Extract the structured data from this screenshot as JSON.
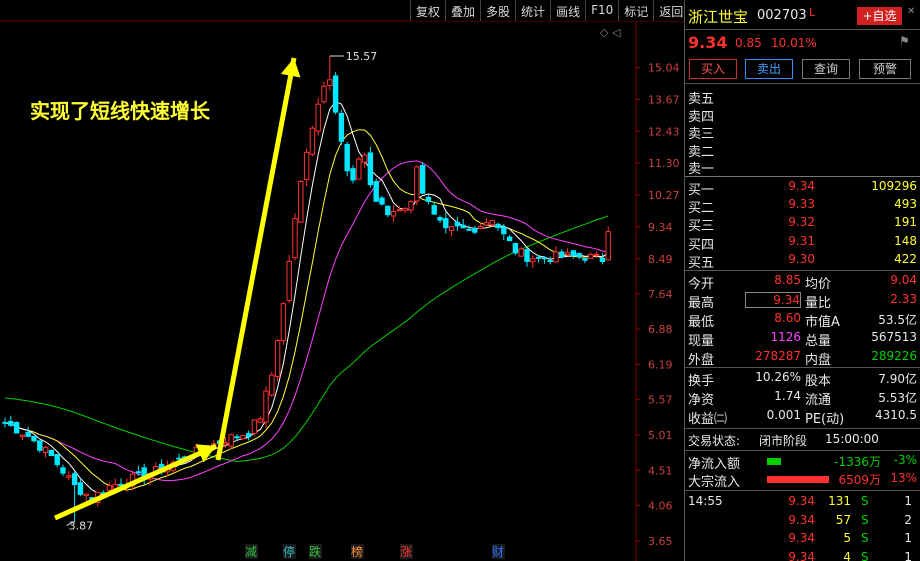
{
  "toolbar": [
    "复权",
    "叠加",
    "多股",
    "统计",
    "画线",
    "F10",
    "标记",
    "返回"
  ],
  "annotation": "实现了短线快速增长",
  "chart_icons": "◇ ◁",
  "chart_data": {
    "type": "candlestick",
    "price_ticks": [
      "15.04",
      "13.67",
      "12.43",
      "11.30",
      "10.27",
      "9.34",
      "8.49",
      "7.64",
      "6.88",
      "6.19",
      "5.57",
      "5.01",
      "4.51",
      "4.06",
      "3.65"
    ],
    "high_label": "15.57",
    "low_label": "3.87",
    "event_markers": [
      {
        "label": "减",
        "color": "#30c040"
      },
      {
        "label": "停",
        "color": "#30c0c0"
      },
      {
        "label": "跌",
        "color": "#30c040"
      },
      {
        "label": "榜",
        "color": "#ff9030"
      },
      {
        "label": "涨",
        "color": "#ff3030"
      },
      {
        "label": "财",
        "color": "#3070ff"
      }
    ],
    "colors": {
      "up": "#ff3030",
      "down": "#00e8ff",
      "ma5": "#ffffff",
      "ma10": "#ffff33",
      "ma20": "#ff40ff",
      "ma60": "#00d000",
      "arrow": "#ffff00"
    }
  },
  "stock": {
    "name": "浙江世宝",
    "code": "002703",
    "flag": "L",
    "add_fav": "+自选",
    "price": "9.34",
    "change": "0.85",
    "pct": "10.01%"
  },
  "actions": {
    "buy": "买入",
    "sell": "卖出",
    "query": "查询",
    "alert": "预警"
  },
  "asks": [
    "卖五",
    "卖四",
    "卖三",
    "卖二",
    "卖一"
  ],
  "bids": [
    {
      "label": "买一",
      "price": "9.34",
      "vol": "109296"
    },
    {
      "label": "买二",
      "price": "9.33",
      "vol": "493"
    },
    {
      "label": "买三",
      "price": "9.32",
      "vol": "191"
    },
    {
      "label": "买四",
      "price": "9.31",
      "vol": "148"
    },
    {
      "label": "买五",
      "price": "9.30",
      "vol": "422"
    }
  ],
  "quote": {
    "open_label": "今开",
    "open": "8.85",
    "avg_label": "均价",
    "avg": "9.04",
    "high_label": "最高",
    "high": "9.34",
    "vr_label": "量比",
    "vr": "2.33",
    "low_label": "最低",
    "low": "8.60",
    "mcap_label": "市值A",
    "mcap": "53.5亿",
    "cur_label": "现量",
    "cur": "1126",
    "total_label": "总量",
    "total": "567513",
    "out_label": "外盘",
    "out": "278287",
    "in_label": "内盘",
    "in": "289226"
  },
  "fund": {
    "turnover_label": "换手",
    "turnover": "10.26%",
    "capital_label": "股本",
    "capital": "7.90亿",
    "nav_label": "净资",
    "nav": "1.74",
    "float_label": "流通",
    "float": "5.53亿",
    "eps_label": "收益㈡",
    "eps": "0.001",
    "pe_label": "PE(动)",
    "pe": "4310.5"
  },
  "status": {
    "label": "交易状态:",
    "state": "闭市阶段",
    "time": "15:00:00"
  },
  "flows": [
    {
      "label": "净流入额",
      "value": "-1336万",
      "pct": "-3%",
      "color": "#00d000",
      "bar": 0.03
    },
    {
      "label": "大宗流入",
      "value": "6509万",
      "pct": "13%",
      "color": "#ff3030",
      "bar": 0.13
    }
  ],
  "ticks": [
    {
      "time": "14:55",
      "price": "9.34",
      "vol": "131",
      "side": "S",
      "n": "1"
    },
    {
      "time": "",
      "price": "9.34",
      "vol": "57",
      "side": "S",
      "n": "2"
    },
    {
      "time": "",
      "price": "9.34",
      "vol": "5",
      "side": "S",
      "n": "1"
    },
    {
      "time": "",
      "price": "9.34",
      "vol": "4",
      "side": "S",
      "n": "1"
    }
  ]
}
